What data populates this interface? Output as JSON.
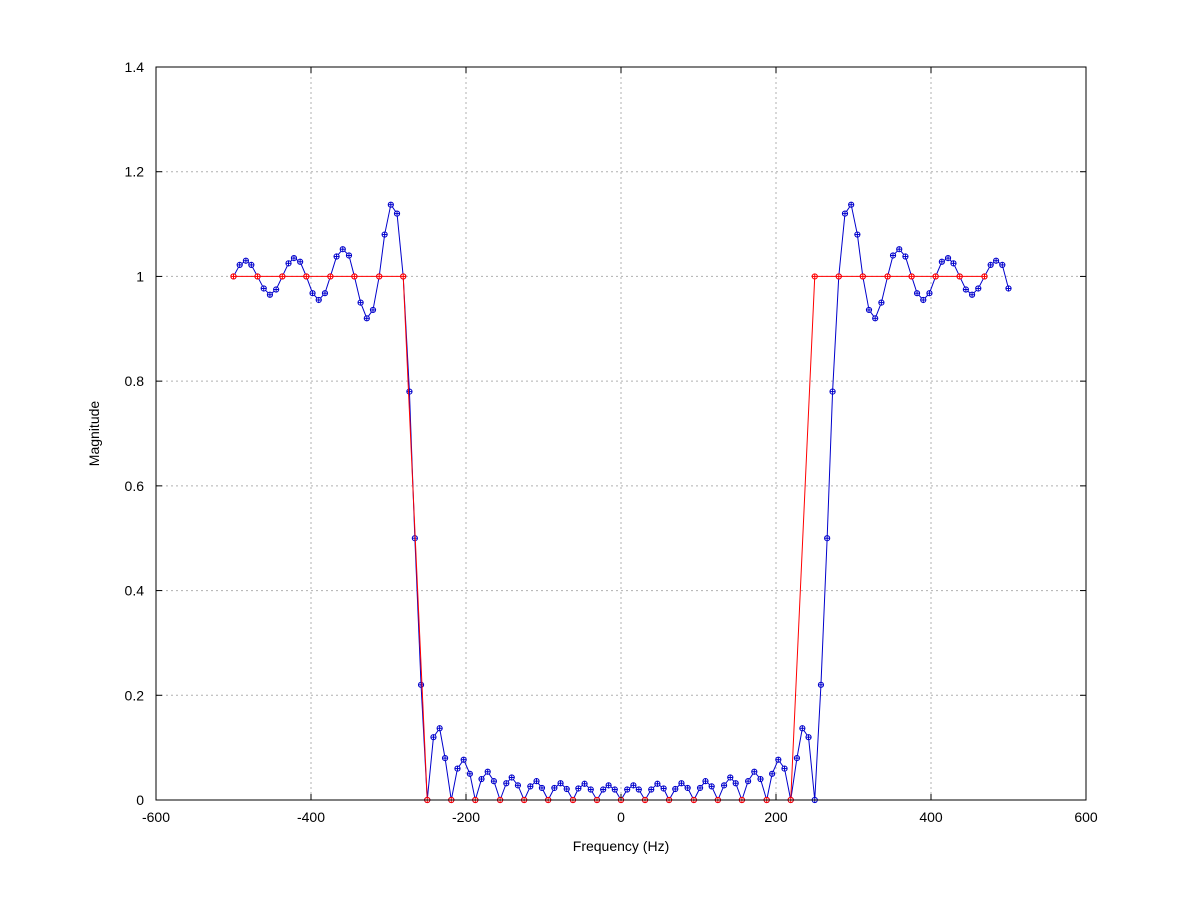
{
  "chart_data": {
    "type": "line",
    "title": "",
    "xlabel": "Frequency (Hz)",
    "ylabel": "Magnitude",
    "xlim": [
      -600,
      600
    ],
    "ylim": [
      0,
      1.4
    ],
    "xticks": [
      -600,
      -400,
      -200,
      0,
      200,
      400,
      600
    ],
    "yticks": [
      0,
      0.2,
      0.4,
      0.6,
      0.8,
      1,
      1.2,
      1.4
    ],
    "xtick_labels": [
      "-600",
      "-400",
      "-200",
      "0",
      "200",
      "400",
      "600"
    ],
    "ytick_labels": [
      "0",
      "0.2",
      "0.4",
      "0.6",
      "0.8",
      "1",
      "1.2",
      "1.4"
    ],
    "grid": true,
    "legend": "none",
    "series": [
      {
        "color": "#0000cc",
        "marker": "circle-plus",
        "points": [
          [
            -500,
            1.0
          ],
          [
            -492,
            1.022
          ],
          [
            -484,
            1.03
          ],
          [
            -477,
            1.022
          ],
          [
            -469,
            1.0
          ],
          [
            -461,
            0.977
          ],
          [
            -453,
            0.965
          ],
          [
            -445,
            0.975
          ],
          [
            -437,
            1.0
          ],
          [
            -429,
            1.025
          ],
          [
            -422,
            1.035
          ],
          [
            -414,
            1.028
          ],
          [
            -406,
            1.0
          ],
          [
            -398,
            0.968
          ],
          [
            -390,
            0.955
          ],
          [
            -382,
            0.968
          ],
          [
            -375,
            1.0
          ],
          [
            -367,
            1.038
          ],
          [
            -359,
            1.052
          ],
          [
            -351,
            1.04
          ],
          [
            -344,
            1.0
          ],
          [
            -336,
            0.95
          ],
          [
            -328,
            0.92
          ],
          [
            -320,
            0.936
          ],
          [
            -312,
            1.0
          ],
          [
            -305,
            1.08
          ],
          [
            -297,
            1.137
          ],
          [
            -289,
            1.12
          ],
          [
            -281,
            1.0
          ],
          [
            -273,
            0.78
          ],
          [
            -266,
            0.5
          ],
          [
            -258,
            0.22
          ],
          [
            -250,
            0.0
          ],
          [
            -242,
            0.12
          ],
          [
            -234,
            0.137
          ],
          [
            -227,
            0.08
          ],
          [
            -219,
            0.0
          ],
          [
            -211,
            0.06
          ],
          [
            -203,
            0.077
          ],
          [
            -195,
            0.05
          ],
          [
            -188,
            0.0
          ],
          [
            -180,
            0.04
          ],
          [
            -172,
            0.054
          ],
          [
            -164,
            0.036
          ],
          [
            -156,
            0.0
          ],
          [
            -148,
            0.032
          ],
          [
            -141,
            0.043
          ],
          [
            -133,
            0.028
          ],
          [
            -125,
            0.0
          ],
          [
            -117,
            0.026
          ],
          [
            -109,
            0.036
          ],
          [
            -102,
            0.023
          ],
          [
            -94,
            0.0
          ],
          [
            -86,
            0.023
          ],
          [
            -78,
            0.032
          ],
          [
            -70,
            0.021
          ],
          [
            -62,
            0.0
          ],
          [
            -55,
            0.022
          ],
          [
            -47,
            0.031
          ],
          [
            -39,
            0.02
          ],
          [
            -31,
            0.0
          ],
          [
            -23,
            0.02
          ],
          [
            -16,
            0.028
          ],
          [
            -8,
            0.02
          ],
          [
            0,
            0.0
          ],
          [
            8,
            0.02
          ],
          [
            16,
            0.028
          ],
          [
            23,
            0.02
          ],
          [
            31,
            0.0
          ],
          [
            39,
            0.02
          ],
          [
            47,
            0.031
          ],
          [
            55,
            0.022
          ],
          [
            62,
            0.0
          ],
          [
            70,
            0.021
          ],
          [
            78,
            0.032
          ],
          [
            86,
            0.023
          ],
          [
            94,
            0.0
          ],
          [
            102,
            0.023
          ],
          [
            109,
            0.036
          ],
          [
            117,
            0.026
          ],
          [
            125,
            0.0
          ],
          [
            133,
            0.028
          ],
          [
            141,
            0.043
          ],
          [
            148,
            0.032
          ],
          [
            156,
            0.0
          ],
          [
            164,
            0.036
          ],
          [
            172,
            0.054
          ],
          [
            180,
            0.04
          ],
          [
            188,
            0.0
          ],
          [
            195,
            0.05
          ],
          [
            203,
            0.077
          ],
          [
            211,
            0.06
          ],
          [
            219,
            0.0
          ],
          [
            227,
            0.08
          ],
          [
            234,
            0.137
          ],
          [
            242,
            0.12
          ],
          [
            250,
            0.0
          ],
          [
            258,
            0.22
          ],
          [
            266,
            0.5
          ],
          [
            273,
            0.78
          ],
          [
            281,
            1.0
          ],
          [
            289,
            1.12
          ],
          [
            297,
            1.137
          ],
          [
            305,
            1.08
          ],
          [
            312,
            1.0
          ],
          [
            320,
            0.936
          ],
          [
            328,
            0.92
          ],
          [
            336,
            0.95
          ],
          [
            344,
            1.0
          ],
          [
            351,
            1.04
          ],
          [
            359,
            1.052
          ],
          [
            367,
            1.038
          ],
          [
            375,
            1.0
          ],
          [
            382,
            0.968
          ],
          [
            390,
            0.955
          ],
          [
            398,
            0.968
          ],
          [
            406,
            1.0
          ],
          [
            414,
            1.028
          ],
          [
            422,
            1.035
          ],
          [
            429,
            1.025
          ],
          [
            437,
            1.0
          ],
          [
            445,
            0.975
          ],
          [
            453,
            0.965
          ],
          [
            461,
            0.977
          ],
          [
            469,
            1.0
          ],
          [
            477,
            1.022
          ],
          [
            484,
            1.03
          ],
          [
            492,
            1.022
          ],
          [
            500,
            0.977
          ]
        ]
      },
      {
        "color": "#ff0000",
        "marker": "circle-plus",
        "points": [
          [
            -500,
            1.0
          ],
          [
            -469,
            1.0
          ],
          [
            -437,
            1.0
          ],
          [
            -406,
            1.0
          ],
          [
            -375,
            1.0
          ],
          [
            -344,
            1.0
          ],
          [
            -312,
            1.0
          ],
          [
            -281,
            1.0
          ],
          [
            -250,
            0.0
          ],
          [
            -219,
            0.0
          ],
          [
            -188,
            0.0
          ],
          [
            -156,
            0.0
          ],
          [
            -125,
            0.0
          ],
          [
            -94,
            0.0
          ],
          [
            -62,
            0.0
          ],
          [
            -31,
            0.0
          ],
          [
            0,
            0.0
          ],
          [
            31,
            0.0
          ],
          [
            62,
            0.0
          ],
          [
            94,
            0.0
          ],
          [
            125,
            0.0
          ],
          [
            156,
            0.0
          ],
          [
            188,
            0.0
          ],
          [
            219,
            0.0
          ],
          [
            250,
            1.0
          ],
          [
            281,
            1.0
          ],
          [
            312,
            1.0
          ],
          [
            344,
            1.0
          ],
          [
            375,
            1.0
          ],
          [
            406,
            1.0
          ],
          [
            437,
            1.0
          ],
          [
            469,
            1.0
          ]
        ]
      }
    ]
  }
}
